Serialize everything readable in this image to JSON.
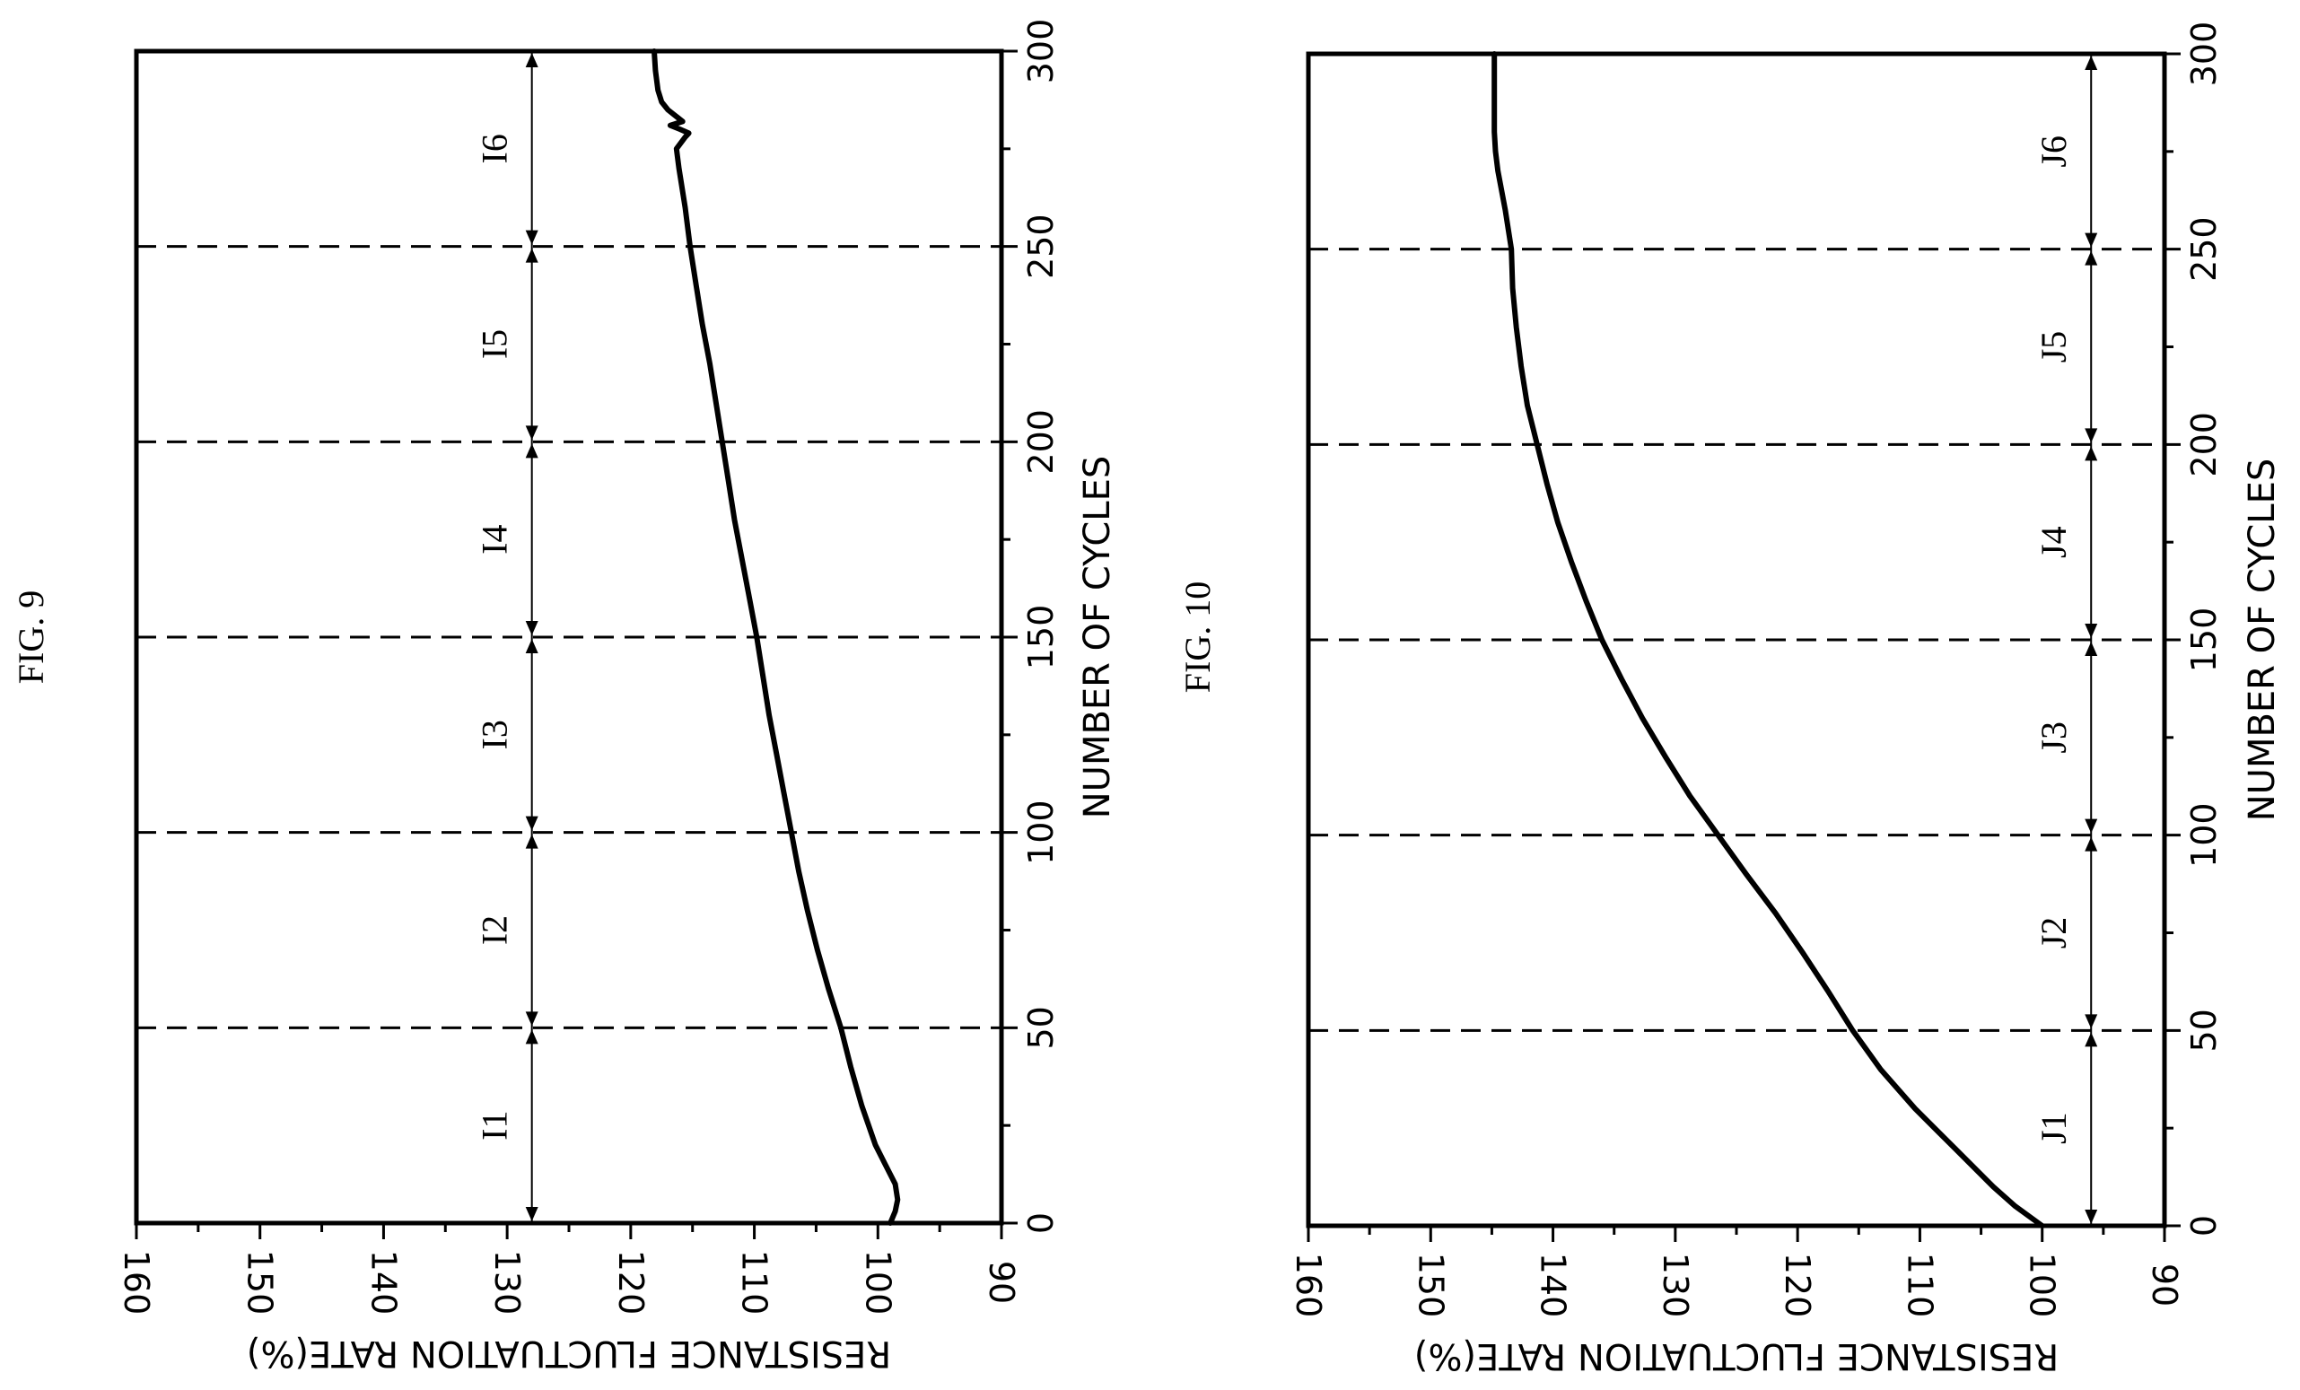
{
  "chart_data": [
    {
      "type": "line",
      "title": "FIG. 9",
      "xlabel": "NUMBER OF CYCLES",
      "ylabel": "RESISTANCE FLUCTUATION RATE(%)",
      "xlim": [
        0,
        300
      ],
      "ylim": [
        90,
        160
      ],
      "x_ticks": [
        "0",
        "50",
        "100",
        "150",
        "200",
        "250",
        "300"
      ],
      "y_ticks": [
        "160",
        "150",
        "140",
        "130",
        "120",
        "110",
        "100",
        "90"
      ],
      "grid": false,
      "orientation": "rotated-90-ccw",
      "interval_boundaries": [
        50,
        100,
        150,
        200,
        250
      ],
      "regions": [
        {
          "label": "I1",
          "start": 0,
          "end": 50
        },
        {
          "label": "I2",
          "start": 50,
          "end": 100
        },
        {
          "label": "I3",
          "start": 100,
          "end": 150
        },
        {
          "label": "I4",
          "start": 150,
          "end": 200
        },
        {
          "label": "I5",
          "start": 200,
          "end": 250
        },
        {
          "label": "I6",
          "start": 250,
          "end": 300
        }
      ],
      "region_arrow_y": 128,
      "series": [
        {
          "x": [
            0,
            3,
            6,
            10,
            15,
            20,
            30,
            40,
            50,
            60,
            70,
            80,
            90,
            100,
            110,
            120,
            130,
            140,
            150,
            160,
            170,
            180,
            190,
            200,
            210,
            220,
            230,
            240,
            250,
            260,
            270,
            275,
            278,
            279,
            280,
            281,
            282,
            283,
            285,
            287,
            290,
            295,
            300
          ],
          "values": [
            99,
            98.6,
            98.4,
            98.6,
            99.4,
            100.2,
            101.3,
            102.2,
            103,
            104,
            104.9,
            105.7,
            106.4,
            107,
            107.6,
            108.2,
            108.8,
            109.3,
            109.8,
            110.4,
            111,
            111.6,
            112.1,
            112.6,
            113.1,
            113.6,
            114.2,
            114.7,
            115.2,
            115.6,
            116.1,
            116.3,
            115.6,
            115.3,
            116,
            116.8,
            115.8,
            116.2,
            117,
            117.5,
            117.8,
            118,
            118.1
          ]
        }
      ]
    },
    {
      "type": "line",
      "title": "FIG. 10",
      "xlabel": "NUMBER OF CYCLES",
      "ylabel": "RESISTANCE FLUCTUATION RATE(%)",
      "xlim": [
        0,
        300
      ],
      "ylim": [
        90,
        160
      ],
      "x_ticks": [
        "0",
        "50",
        "100",
        "150",
        "200",
        "250",
        "300"
      ],
      "y_ticks": [
        "160",
        "150",
        "140",
        "130",
        "120",
        "110",
        "100",
        "90"
      ],
      "grid": false,
      "orientation": "rotated-90-ccw",
      "interval_boundaries": [
        50,
        100,
        150,
        200,
        250
      ],
      "regions": [
        {
          "label": "J1",
          "start": 0,
          "end": 50
        },
        {
          "label": "J2",
          "start": 50,
          "end": 100
        },
        {
          "label": "J3",
          "start": 100,
          "end": 150
        },
        {
          "label": "J4",
          "start": 150,
          "end": 200
        },
        {
          "label": "J5",
          "start": 200,
          "end": 250
        },
        {
          "label": "J6",
          "start": 250,
          "end": 300
        }
      ],
      "region_arrow_y": 96,
      "series": [
        {
          "x": [
            0,
            5,
            10,
            20,
            30,
            40,
            50,
            60,
            70,
            80,
            90,
            100,
            110,
            120,
            130,
            140,
            150,
            160,
            170,
            180,
            190,
            200,
            210,
            220,
            230,
            240,
            250,
            260,
            270,
            275,
            280,
            290,
            300
          ],
          "values": [
            100,
            102.2,
            104,
            107.2,
            110.4,
            113.2,
            115.5,
            117.5,
            119.6,
            121.8,
            124.2,
            126.5,
            128.8,
            130.8,
            132.7,
            134.4,
            136,
            137.3,
            138.5,
            139.6,
            140.5,
            141.3,
            142.1,
            142.6,
            143,
            143.3,
            143.4,
            143.9,
            144.5,
            144.7,
            144.8,
            144.8,
            144.8
          ]
        }
      ]
    }
  ]
}
